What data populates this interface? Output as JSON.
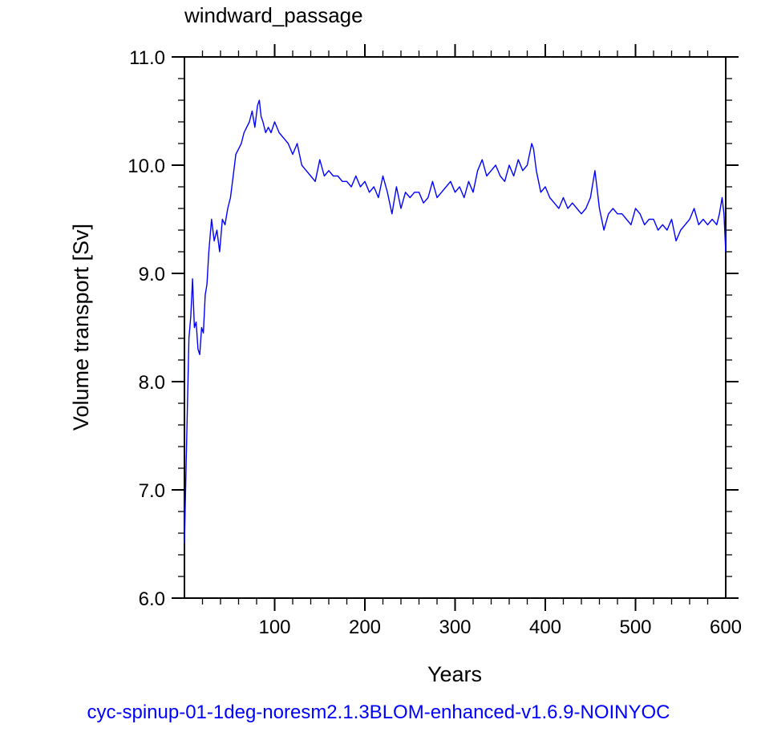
{
  "chart_data": {
    "type": "line",
    "title": "windward_passage",
    "xlabel": "Years",
    "ylabel": "Volume transport [Sv]",
    "xlim": [
      0,
      600
    ],
    "ylim": [
      6.0,
      11.0
    ],
    "xticks": [
      100,
      200,
      300,
      400,
      500,
      600
    ],
    "yticks": [
      6.0,
      7.0,
      8.0,
      9.0,
      10.0,
      11.0
    ],
    "ytick_labels": [
      "6.0",
      "7.0",
      "8.0",
      "9.0",
      "10.0",
      "11.0"
    ],
    "grid": false,
    "line_color": "#0000ff",
    "series": [
      {
        "name": "",
        "x": [
          0,
          2,
          5,
          7,
          9,
          11,
          13,
          15,
          17,
          19,
          21,
          23,
          25,
          27,
          30,
          33,
          36,
          39,
          42,
          45,
          48,
          51,
          54,
          57,
          60,
          63,
          66,
          69,
          72,
          75,
          78,
          81,
          83,
          85,
          87,
          90,
          93,
          96,
          100,
          105,
          110,
          115,
          120,
          125,
          130,
          135,
          140,
          145,
          150,
          155,
          160,
          165,
          170,
          175,
          180,
          185,
          190,
          195,
          200,
          205,
          210,
          215,
          220,
          225,
          230,
          235,
          240,
          245,
          250,
          255,
          260,
          265,
          270,
          275,
          280,
          285,
          290,
          295,
          300,
          305,
          310,
          315,
          320,
          325,
          330,
          335,
          340,
          345,
          350,
          355,
          360,
          365,
          370,
          375,
          380,
          385,
          387,
          390,
          395,
          400,
          405,
          410,
          415,
          420,
          425,
          430,
          435,
          440,
          445,
          450,
          455,
          460,
          465,
          470,
          475,
          480,
          485,
          490,
          495,
          500,
          505,
          510,
          515,
          520,
          525,
          530,
          535,
          540,
          545,
          550,
          555,
          560,
          565,
          570,
          575,
          580,
          585,
          590,
          593,
          596,
          598,
          600
        ],
        "values": [
          6.5,
          7.3,
          8.4,
          8.6,
          8.95,
          8.5,
          8.55,
          8.3,
          8.25,
          8.5,
          8.45,
          8.8,
          8.9,
          9.2,
          9.5,
          9.3,
          9.4,
          9.2,
          9.5,
          9.45,
          9.6,
          9.7,
          9.9,
          10.1,
          10.15,
          10.2,
          10.3,
          10.35,
          10.4,
          10.5,
          10.35,
          10.55,
          10.6,
          10.45,
          10.4,
          10.3,
          10.35,
          10.3,
          10.4,
          10.3,
          10.25,
          10.2,
          10.1,
          10.2,
          10.0,
          9.95,
          9.9,
          9.85,
          10.05,
          9.9,
          9.95,
          9.9,
          9.9,
          9.85,
          9.85,
          9.8,
          9.9,
          9.8,
          9.85,
          9.75,
          9.8,
          9.7,
          9.9,
          9.75,
          9.55,
          9.8,
          9.6,
          9.75,
          9.7,
          9.75,
          9.75,
          9.65,
          9.7,
          9.85,
          9.7,
          9.75,
          9.8,
          9.85,
          9.75,
          9.8,
          9.7,
          9.85,
          9.75,
          9.95,
          10.05,
          9.9,
          9.95,
          10.0,
          9.9,
          9.85,
          10.0,
          9.9,
          10.05,
          9.95,
          10.0,
          10.2,
          10.15,
          9.95,
          9.75,
          9.8,
          9.7,
          9.65,
          9.6,
          9.7,
          9.6,
          9.65,
          9.6,
          9.55,
          9.6,
          9.7,
          9.95,
          9.6,
          9.4,
          9.55,
          9.6,
          9.55,
          9.55,
          9.5,
          9.45,
          9.6,
          9.55,
          9.45,
          9.5,
          9.5,
          9.4,
          9.45,
          9.4,
          9.5,
          9.3,
          9.4,
          9.45,
          9.5,
          9.6,
          9.45,
          9.5,
          9.45,
          9.5,
          9.45,
          9.55,
          9.7,
          9.55,
          9.2
        ]
      }
    ]
  },
  "footer": {
    "text": "cyc-spinup-01-1deg-noresm2.1.3BLOM-enhanced-v1.6.9-NOINYOC",
    "color": "#0000ff"
  }
}
